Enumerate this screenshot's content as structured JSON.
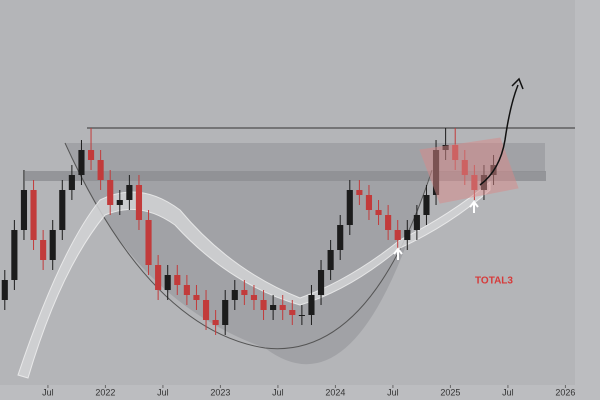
{
  "chart_data": {
    "type": "candlestick",
    "label": "TOTAL3",
    "x": [
      "2021-02",
      "2021-03",
      "2021-04",
      "2021-05",
      "2021-06",
      "2021-07",
      "2021-08",
      "2021-09",
      "2021-10",
      "2021-11",
      "2021-12",
      "2022-01",
      "2022-02",
      "2022-03",
      "2022-04",
      "2022-05",
      "2022-06",
      "2022-07",
      "2022-08",
      "2022-09",
      "2022-10",
      "2022-11",
      "2022-12",
      "2023-01",
      "2023-02",
      "2023-03",
      "2023-04",
      "2023-05",
      "2023-06",
      "2023-07",
      "2023-08",
      "2023-09",
      "2023-10",
      "2023-11",
      "2023-12",
      "2024-01",
      "2024-02",
      "2024-03",
      "2024-04",
      "2024-05",
      "2024-06",
      "2024-07",
      "2024-08",
      "2024-09",
      "2024-10",
      "2024-11",
      "2024-12",
      "2025-01",
      "2025-02",
      "2025-03",
      "2025-04",
      "2025-05"
    ],
    "open": [
      85,
      105,
      155,
      195,
      145,
      125,
      155,
      195,
      210,
      235,
      225,
      205,
      180,
      185,
      200,
      165,
      120,
      95,
      110,
      100,
      90,
      85,
      65,
      60,
      85,
      95,
      90,
      85,
      75,
      80,
      75,
      70,
      70,
      90,
      115,
      135,
      160,
      195,
      190,
      175,
      170,
      155,
      145,
      155,
      170,
      190,
      235,
      240,
      225,
      210,
      195,
      210
    ],
    "high": [
      115,
      165,
      215,
      205,
      155,
      165,
      205,
      220,
      245,
      257,
      235,
      215,
      195,
      210,
      210,
      175,
      130,
      120,
      120,
      110,
      100,
      95,
      75,
      95,
      105,
      105,
      100,
      95,
      90,
      90,
      85,
      80,
      100,
      125,
      145,
      170,
      205,
      205,
      200,
      185,
      180,
      165,
      165,
      180,
      200,
      245,
      257,
      257,
      235,
      220,
      220,
      230
    ],
    "low": [
      75,
      95,
      145,
      135,
      115,
      115,
      145,
      185,
      200,
      215,
      195,
      170,
      170,
      175,
      155,
      110,
      85,
      85,
      90,
      80,
      75,
      55,
      50,
      50,
      75,
      80,
      75,
      65,
      65,
      65,
      60,
      60,
      60,
      80,
      105,
      125,
      150,
      180,
      165,
      160,
      145,
      135,
      135,
      145,
      160,
      180,
      225,
      215,
      200,
      185,
      185,
      200
    ],
    "close": [
      105,
      155,
      195,
      145,
      125,
      155,
      195,
      210,
      235,
      225,
      205,
      180,
      185,
      200,
      165,
      120,
      95,
      110,
      100,
      90,
      85,
      65,
      60,
      85,
      95,
      90,
      85,
      75,
      80,
      75,
      70,
      70,
      90,
      115,
      135,
      160,
      195,
      190,
      175,
      170,
      155,
      145,
      155,
      170,
      190,
      235,
      240,
      225,
      210,
      195,
      210,
      220
    ],
    "up_color": "#1c1c1c",
    "down_color": "#c23b3b",
    "xlim": [
      "2021-02",
      "2026-02"
    ],
    "xticks": [
      {
        "value": "2021-07",
        "label": "Jul"
      },
      {
        "value": "2022-01",
        "label": "2022"
      },
      {
        "value": "2022-07",
        "label": "Jul"
      },
      {
        "value": "2023-01",
        "label": "2023"
      },
      {
        "value": "2023-07",
        "label": "Jul"
      },
      {
        "value": "2024-01",
        "label": "2024"
      },
      {
        "value": "2024-07",
        "label": "Jul"
      },
      {
        "value": "2025-01",
        "label": "2025"
      },
      {
        "value": "2025-07",
        "label": "Jul"
      },
      {
        "value": "2026-01",
        "label": "2026"
      }
    ],
    "ylim": [
      0,
      385
    ]
  }
}
